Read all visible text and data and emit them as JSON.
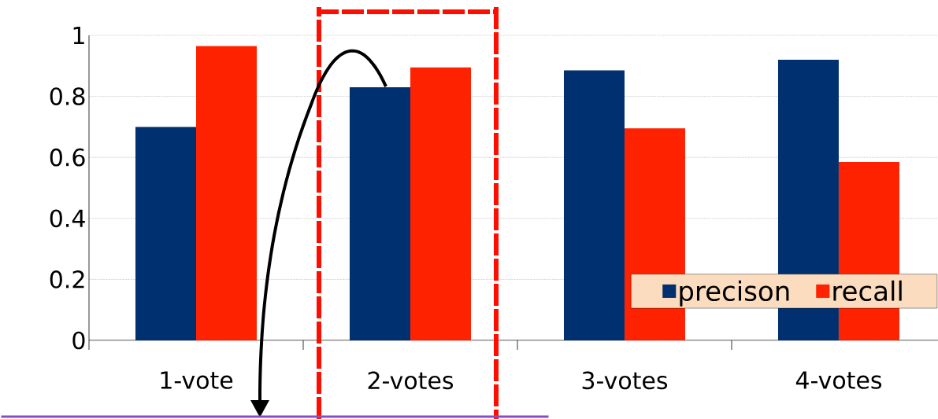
{
  "chart_data": {
    "type": "bar",
    "categories": [
      "1-vote",
      "2-votes",
      "3-votes",
      "4-votes"
    ],
    "series": [
      {
        "name": "precison",
        "color": "#003070",
        "values": [
          0.7,
          0.83,
          0.885,
          0.92
        ]
      },
      {
        "name": "recall",
        "color": "#ff2200",
        "values": [
          0.965,
          0.895,
          0.695,
          0.585
        ]
      }
    ],
    "ylim": [
      0,
      1
    ],
    "yticks": [
      0,
      0.2,
      0.4,
      0.6,
      0.8,
      1
    ],
    "grid": "y",
    "legend": "bottom right"
  }
}
